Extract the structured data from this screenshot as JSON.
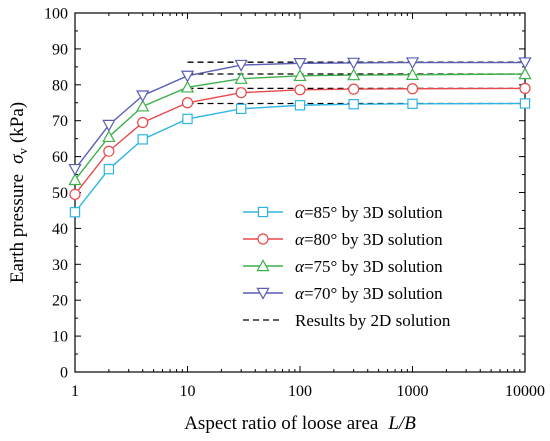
{
  "chart_data": {
    "type": "line",
    "xlabel": {
      "text": "Aspect ratio of loose area",
      "symbol": "L/B"
    },
    "ylabel": {
      "text": "Earth pressure",
      "symbol": "σ",
      "subscript": "v",
      "unit": "(kPa)"
    },
    "xscale": "log",
    "xlim": [
      1,
      10000
    ],
    "ylim": [
      0,
      100
    ],
    "xticks": [
      "1",
      "10",
      "100",
      "1000",
      "10000"
    ],
    "yticks": [
      "0",
      "10",
      "20",
      "30",
      "40",
      "50",
      "60",
      "70",
      "80",
      "90",
      "100"
    ],
    "grid": false,
    "legend_position": "bottom-right",
    "x": [
      1,
      2,
      4,
      10,
      30,
      100,
      300,
      1000,
      10000
    ],
    "series": [
      {
        "name": "α=85° by 3D solution",
        "symbol": "α",
        "label_rest": "=85° by 3D solution",
        "color": "#2eb5e6",
        "marker": "square",
        "values": [
          44.5,
          56.5,
          64.8,
          70.5,
          73.3,
          74.3,
          74.6,
          74.7,
          74.8
        ]
      },
      {
        "name": "α=80° by 3D solution",
        "symbol": "α",
        "label_rest": "=80° by 3D solution",
        "color": "#e8484b",
        "marker": "circle",
        "values": [
          49.5,
          61.5,
          69.5,
          75.0,
          77.8,
          78.6,
          78.8,
          78.9,
          79.0
        ]
      },
      {
        "name": "α=75° by 3D solution",
        "symbol": "α",
        "label_rest": "=75° by 3D solution",
        "color": "#3db14b",
        "marker": "triangle-up",
        "values": [
          53.5,
          65.5,
          74.0,
          79.3,
          81.7,
          82.5,
          82.7,
          82.8,
          83.0
        ]
      },
      {
        "name": "α=70° by 3D solution",
        "symbol": "α",
        "label_rest": "=70° by 3D solution",
        "color": "#5a5fb3",
        "marker": "triangle-down",
        "values": [
          56.5,
          68.8,
          77.0,
          82.5,
          85.5,
          86.0,
          86.1,
          86.2,
          86.2
        ]
      }
    ],
    "reference_lines": {
      "name": "Results by 2D solution",
      "style": "dashed",
      "color": "#000000",
      "x_start": 10,
      "x_end": 10000,
      "values": [
        74.8,
        79.0,
        83.0,
        86.3
      ]
    }
  }
}
